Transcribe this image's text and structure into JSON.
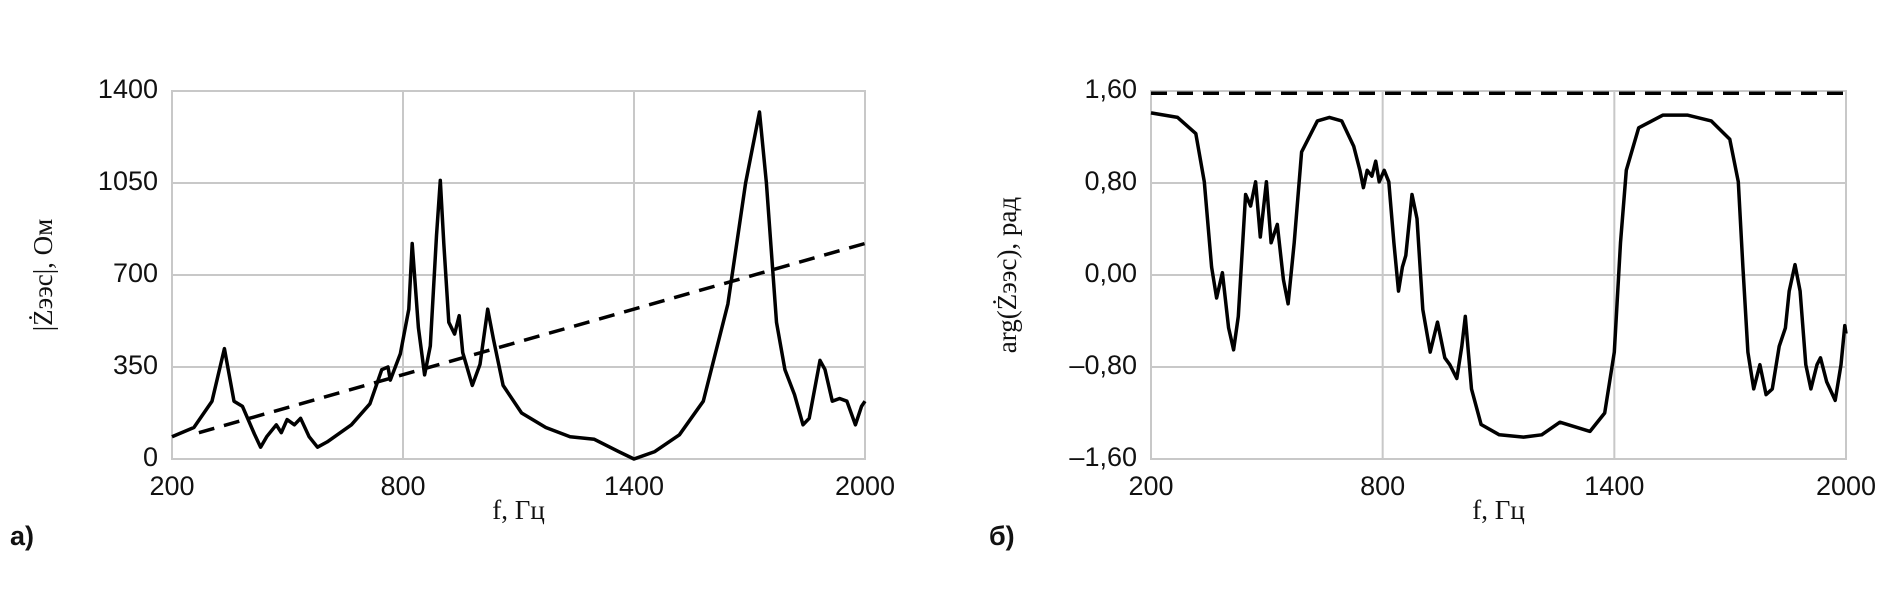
{
  "chart_data": [
    {
      "type": "line",
      "panel_label": "а)",
      "xlabel": "f, Гц",
      "ylabel": "|Żээс|, Ом",
      "xlim": [
        200,
        2000
      ],
      "xticks": [
        200,
        800,
        1400,
        2000
      ],
      "ylim": [
        0,
        1400
      ],
      "yticks": [
        0,
        350,
        700,
        1050,
        1400
      ],
      "grid": true,
      "series": [
        {
          "color": "#000000",
          "dash": false,
          "x": [
            200,
            257,
            304,
            336,
            361,
            383,
            414,
            430,
            446,
            471,
            484,
            499,
            518,
            534,
            556,
            578,
            603,
            666,
            714,
            745,
            761,
            767,
            793,
            815,
            824,
            840,
            856,
            871,
            887,
            897,
            906,
            919,
            934,
            946,
            955,
            980,
            1000,
            1020,
            1035,
            1060,
            1108,
            1171,
            1234,
            1297,
            1360,
            1400,
            1454,
            1518,
            1580,
            1644,
            1690,
            1726,
            1744,
            1770,
            1792,
            1817,
            1839,
            1855,
            1883,
            1896,
            1915,
            1934,
            1953,
            1975,
            1991,
            2000
          ],
          "values": [
            85,
            120,
            220,
            420,
            220,
            200,
            95,
            45,
            85,
            130,
            100,
            150,
            130,
            155,
            85,
            45,
            65,
            130,
            210,
            340,
            350,
            300,
            400,
            570,
            820,
            500,
            320,
            430,
            850,
            1060,
            820,
            520,
            475,
            545,
            405,
            280,
            360,
            570,
            455,
            280,
            175,
            120,
            85,
            75,
            28,
            0,
            28,
            92,
            220,
            590,
            1050,
            1320,
            1050,
            520,
            340,
            245,
            130,
            155,
            375,
            340,
            220,
            230,
            220,
            130,
            200,
            220
          ]
        },
        {
          "color": "#000000",
          "dash": true,
          "x": [
            270,
            2000
          ],
          "values": [
            100,
            820
          ]
        }
      ]
    },
    {
      "type": "line",
      "panel_label": "б)",
      "xlabel": "f, Гц",
      "ylabel": "arg(Żээс), рад",
      "xlim": [
        200,
        2000
      ],
      "xticks": [
        200,
        800,
        1400,
        2000
      ],
      "ylim": [
        -1.6,
        1.6
      ],
      "yticks": [
        {
          "value": -1.6,
          "label": "–1,60"
        },
        {
          "value": -0.8,
          "label": "–0,80"
        },
        {
          "value": 0,
          "label": "0,00"
        },
        {
          "value": 0.8,
          "label": "0,80"
        },
        {
          "value": 1.6,
          "label": "1,60"
        }
      ],
      "grid": true,
      "series": [
        {
          "color": "#000000",
          "dash": false,
          "x": [
            200,
            269,
            316,
            338,
            357,
            370,
            385,
            401,
            414,
            426,
            445,
            458,
            471,
            483,
            499,
            511,
            527,
            543,
            555,
            571,
            590,
            631,
            662,
            694,
            725,
            741,
            750,
            760,
            772,
            782,
            791,
            804,
            816,
            829,
            841,
            851,
            860,
            876,
            889,
            904,
            923,
            942,
            961,
            974,
            992,
            1005,
            1014,
            1030,
            1055,
            1102,
            1165,
            1212,
            1259,
            1337,
            1375,
            1400,
            1416,
            1431,
            1463,
            1526,
            1589,
            1651,
            1699,
            1721,
            1733,
            1746,
            1761,
            1777,
            1793,
            1809,
            1827,
            1843,
            1853,
            1868,
            1881,
            1896,
            1909,
            1925,
            1934,
            1950,
            1972,
            1987,
            1997,
            2000
          ],
          "values": [
            1.41,
            1.37,
            1.23,
            0.81,
            0.07,
            -0.2,
            0.02,
            -0.46,
            -0.65,
            -0.36,
            0.7,
            0.6,
            0.81,
            0.33,
            0.81,
            0.28,
            0.44,
            -0.04,
            -0.25,
            0.28,
            1.07,
            1.34,
            1.37,
            1.34,
            1.12,
            0.91,
            0.76,
            0.91,
            0.86,
            0.99,
            0.81,
            0.91,
            0.81,
            0.28,
            -0.14,
            0.07,
            0.17,
            0.7,
            0.49,
            -0.3,
            -0.67,
            -0.41,
            -0.72,
            -0.78,
            -0.9,
            -0.62,
            -0.36,
            -0.99,
            -1.3,
            -1.39,
            -1.41,
            -1.39,
            -1.28,
            -1.36,
            -1.2,
            -0.67,
            0.28,
            0.91,
            1.28,
            1.39,
            1.39,
            1.34,
            1.18,
            0.81,
            0.07,
            -0.67,
            -0.99,
            -0.78,
            -1.04,
            -0.99,
            -0.62,
            -0.46,
            -0.14,
            0.09,
            -0.14,
            -0.78,
            -0.99,
            -0.78,
            -0.72,
            -0.93,
            -1.09,
            -0.78,
            -0.44,
            -0.51
          ]
        },
        {
          "color": "#000000",
          "dash": true,
          "x": [
            200,
            2000
          ],
          "values": [
            1.58,
            1.58
          ]
        }
      ]
    }
  ]
}
